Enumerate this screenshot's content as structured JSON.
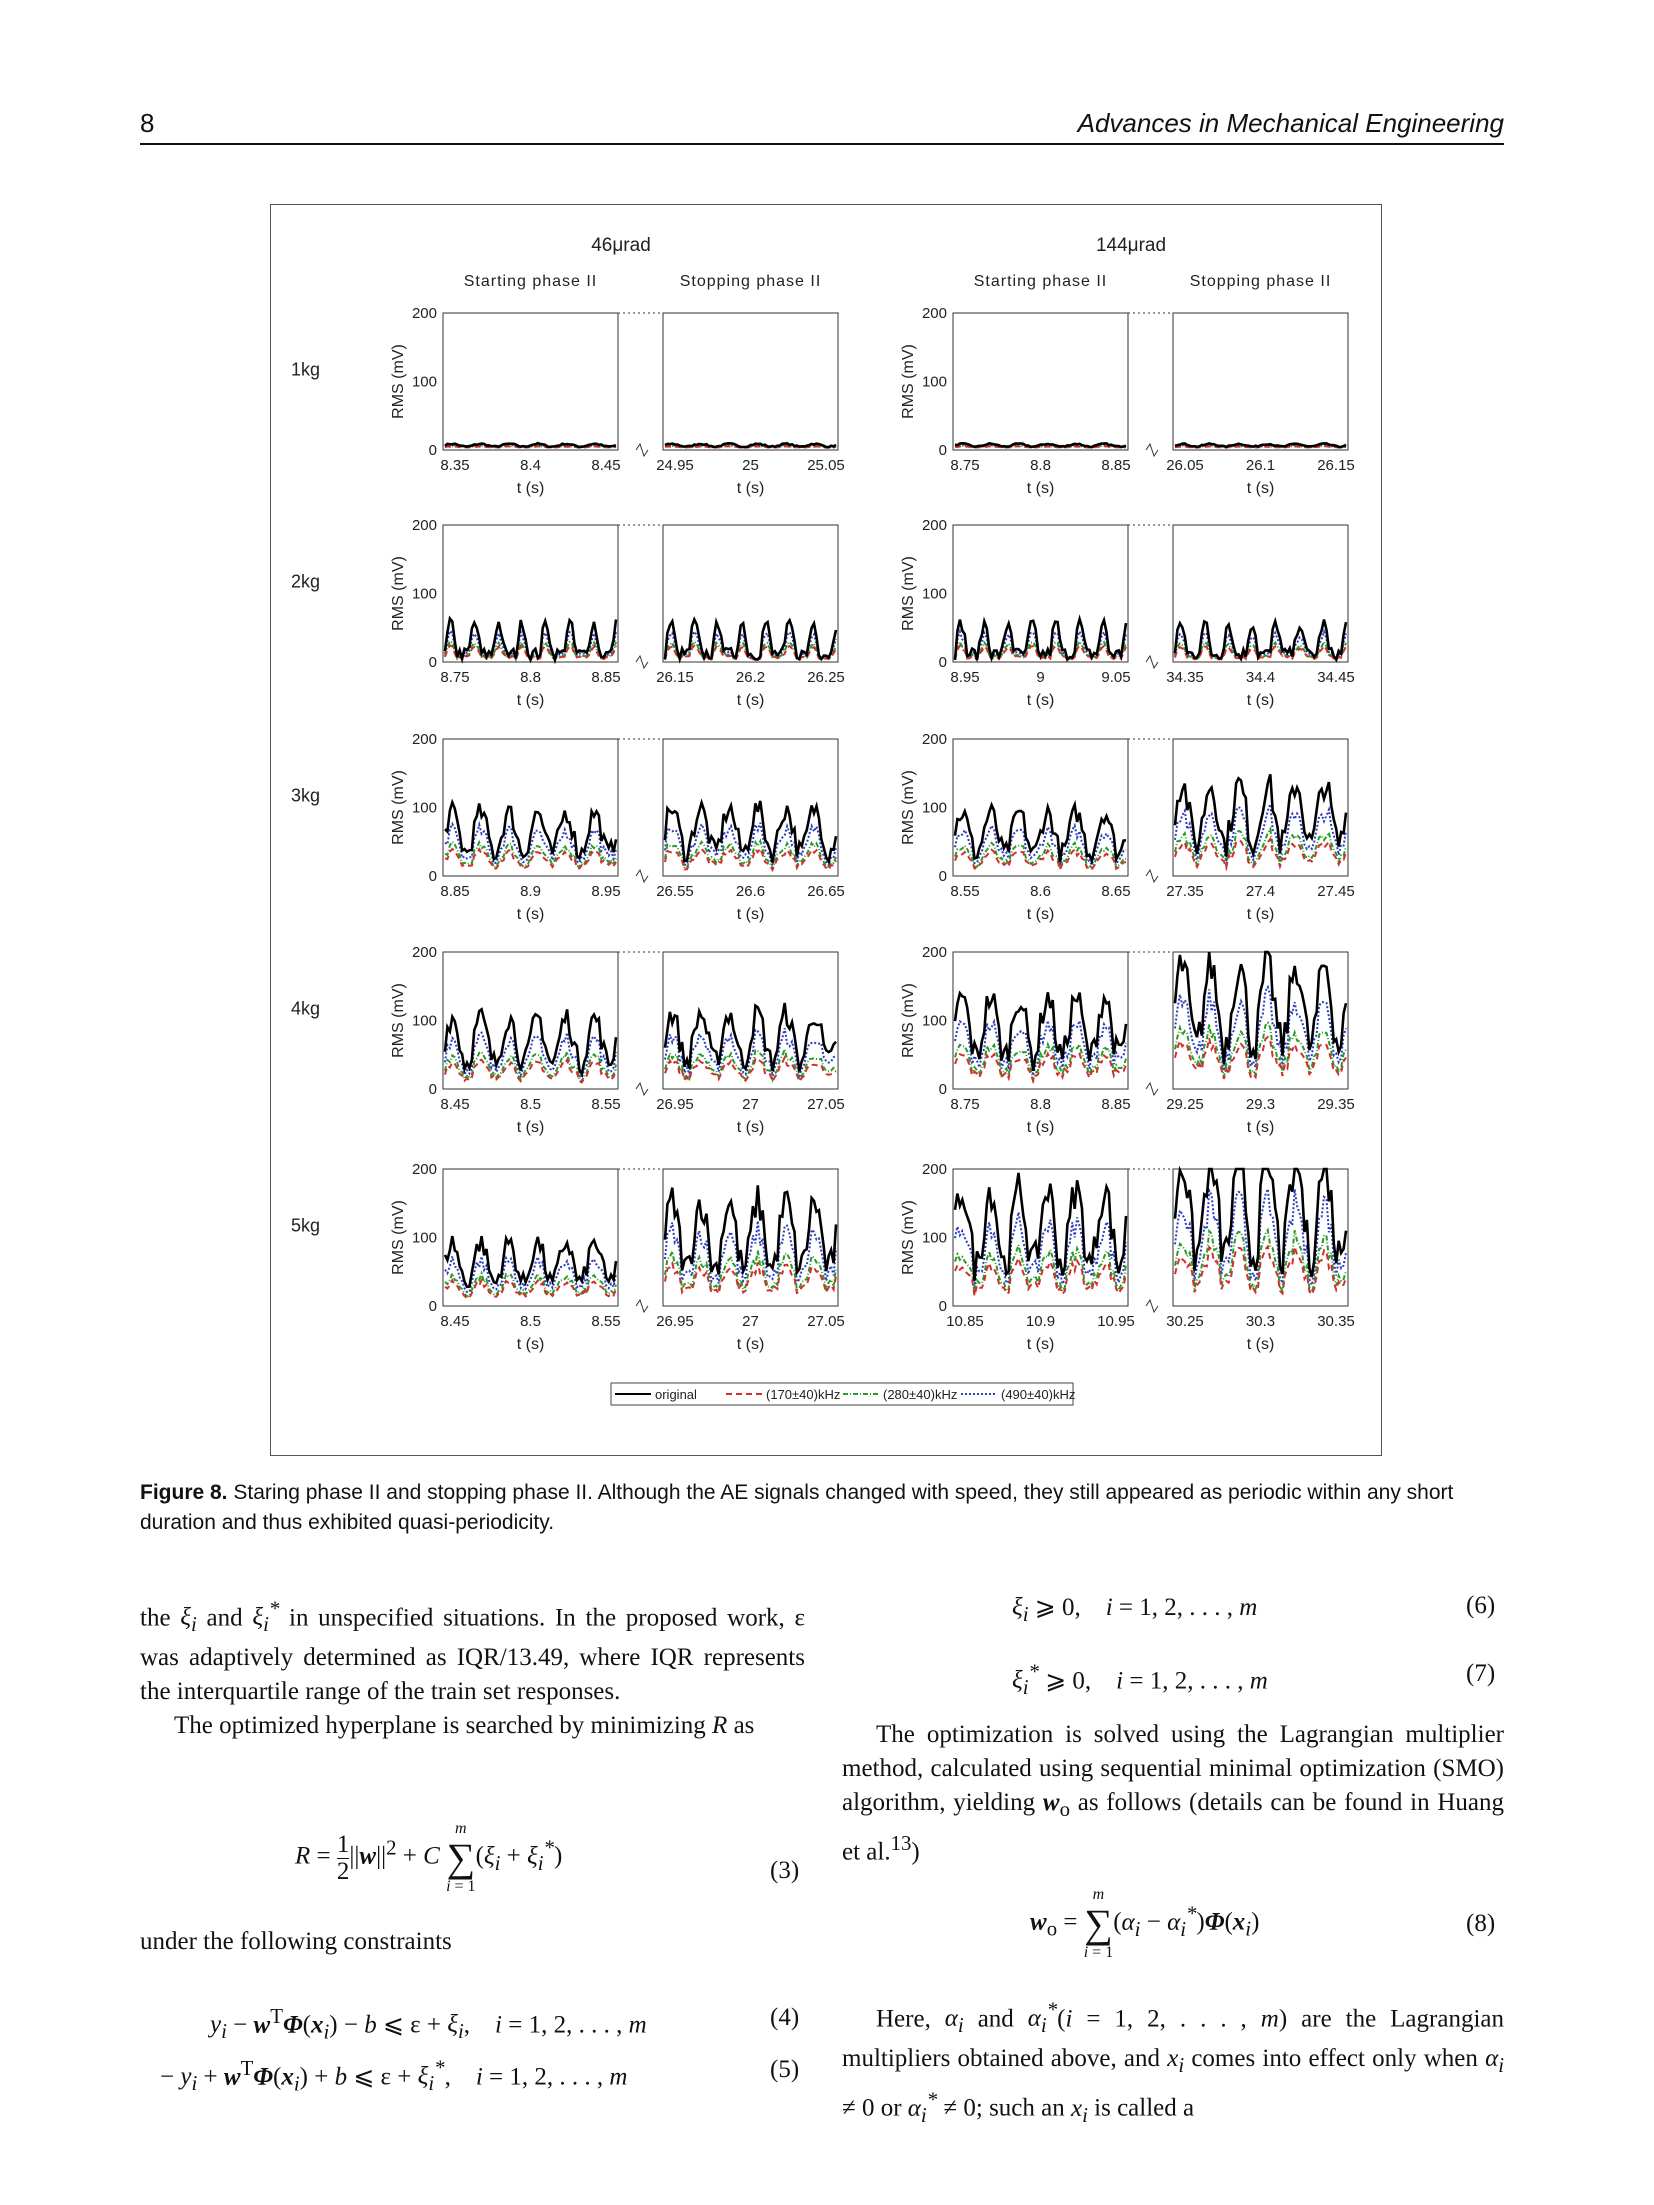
{
  "header": {
    "page_number": "8",
    "journal": "Advances in Mechanical Engineering"
  },
  "figure": {
    "caption_label": "Figure 8.",
    "caption_text": "Staring phase II and stopping phase II. Although the AE signals changed with speed, they still appeared as periodic within any short duration and thus exhibited quasi-periodicity."
  },
  "chart_data": {
    "type": "line",
    "groups": [
      {
        "title": "46μrad",
        "panels": [
          "Starting phase II",
          "Stopping phase II"
        ]
      },
      {
        "title": "144μrad",
        "panels": [
          "Starting phase II",
          "Stopping phase II"
        ]
      }
    ],
    "rows": [
      {
        "label": "1kg",
        "amplitude": [
          5,
          5,
          5,
          5
        ],
        "xticks": [
          [
            "8.35",
            "8.4",
            "8.45"
          ],
          [
            "24.95",
            "25",
            "25.05"
          ],
          [
            "8.75",
            "8.8",
            "8.85"
          ],
          [
            "26.05",
            "26.1",
            "26.15"
          ]
        ]
      },
      {
        "label": "2kg",
        "amplitude": [
          45,
          45,
          45,
          45
        ],
        "xticks": [
          [
            "8.75",
            "8.8",
            "8.85"
          ],
          [
            "26.15",
            "26.2",
            "26.25"
          ],
          [
            "8.95",
            "9",
            "9.05"
          ],
          [
            "34.35",
            "34.4",
            "34.45"
          ]
        ]
      },
      {
        "label": "3kg",
        "amplitude": [
          75,
          80,
          75,
          110
        ],
        "xticks": [
          [
            "8.85",
            "8.9",
            "8.95"
          ],
          [
            "26.55",
            "26.6",
            "26.65"
          ],
          [
            "8.55",
            "8.6",
            "8.65"
          ],
          [
            "27.35",
            "27.4",
            "27.45"
          ]
        ]
      },
      {
        "label": "4kg",
        "amplitude": [
          85,
          90,
          110,
          150
        ],
        "xticks": [
          [
            "8.45",
            "8.5",
            "8.55"
          ],
          [
            "26.95",
            "27",
            "27.05"
          ],
          [
            "8.75",
            "8.8",
            "8.85"
          ],
          [
            "29.25",
            "29.3",
            "29.35"
          ]
        ]
      },
      {
        "label": "5kg",
        "amplitude": [
          75,
          125,
          140,
          175
        ],
        "xticks": [
          [
            "8.45",
            "8.5",
            "8.55"
          ],
          [
            "26.95",
            "27",
            "27.05"
          ],
          [
            "10.85",
            "10.9",
            "10.95"
          ],
          [
            "30.25",
            "30.3",
            "30.35"
          ]
        ]
      }
    ],
    "ylabel": "RMS (mV)",
    "xlabel": "t (s)",
    "yticks": [
      "0",
      "100",
      "200"
    ],
    "ylim": [
      0,
      200
    ],
    "legend": [
      "original",
      "(170±40)kHz",
      "(280±40)kHz",
      "(490±40)kHz"
    ],
    "legend_placement": "bottom",
    "series_colors": [
      "#000000",
      "#d03030",
      "#2a9a2a",
      "#2a3fc0"
    ],
    "series_scale": [
      1.0,
      0.35,
      0.45,
      0.7
    ]
  },
  "left_col": {
    "p1_a": "the ",
    "p1_b": " in unspecified situations. In the proposed work, ε was adaptively determined as IQR/13.49, where IQR represents the interquartile range of the train set responses.",
    "p2": "The optimized hyperplane is searched by minimizing ",
    "p2_end": " as",
    "p3": "under the following constraints"
  },
  "right_col": {
    "p1": "The optimization is solved using the Lagrangian multiplier method, calculated using sequential minimal optimization (SMO) algorithm, yielding ",
    "p1_b": " as follows (details can be found in Huang et al.",
    "p1_ref": "13",
    "p1_end": ")",
    "p2_a": "Here, ",
    "p2_b": " are the Lagrangian multipliers obtained above, and ",
    "p2_c": " comes into effect only when ",
    "p2_d": " such an ",
    "p2_e": " is called a"
  },
  "equations": {
    "eq3_num": "(3)",
    "eq4_num": "(4)",
    "eq5_num": "(5)",
    "eq6_num": "(6)",
    "eq7_num": "(7)",
    "eq8_num": "(8)"
  }
}
